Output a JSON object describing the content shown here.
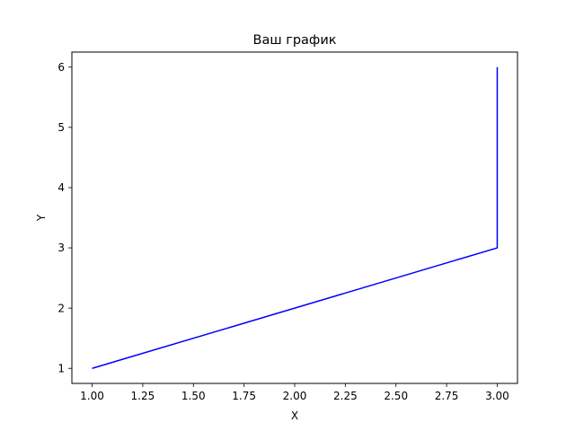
{
  "chart_data": {
    "type": "line",
    "title": "Ваш график",
    "xlabel": "X",
    "ylabel": "Y",
    "xlim": [
      0.9,
      3.1
    ],
    "ylim": [
      0.75,
      6.25
    ],
    "xticks": [
      1.0,
      1.25,
      1.5,
      1.75,
      2.0,
      2.25,
      2.5,
      2.75,
      3.0
    ],
    "xtick_labels": [
      "1.00",
      "1.25",
      "1.50",
      "1.75",
      "2.00",
      "2.25",
      "2.50",
      "2.75",
      "3.00"
    ],
    "yticks": [
      1,
      2,
      3,
      4,
      5,
      6
    ],
    "ytick_labels": [
      "1",
      "2",
      "3",
      "4",
      "5",
      "6"
    ],
    "grid": false,
    "series": [
      {
        "x": [
          1,
          3,
          3
        ],
        "y": [
          1,
          3,
          6
        ],
        "color": "#0000ff"
      }
    ]
  }
}
